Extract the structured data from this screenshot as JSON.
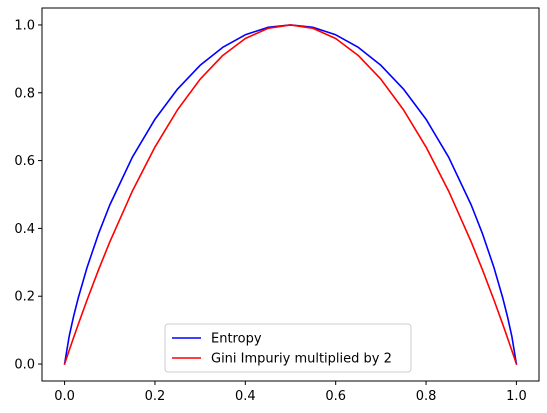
{
  "chart_data": {
    "type": "line",
    "title": "",
    "xlabel": "",
    "ylabel": "",
    "xlim": [
      -0.05,
      1.05
    ],
    "ylim": [
      -0.05,
      1.05
    ],
    "xticks": [
      0.0,
      0.2,
      0.4,
      0.6,
      0.8,
      1.0
    ],
    "yticks": [
      0.0,
      0.2,
      0.4,
      0.6,
      0.8,
      1.0
    ],
    "xtick_labels": [
      "0.0",
      "0.2",
      "0.4",
      "0.6",
      "0.8",
      "1.0"
    ],
    "ytick_labels": [
      "0.0",
      "0.2",
      "0.4",
      "0.6",
      "0.8",
      "1.0"
    ],
    "grid": false,
    "legend_position": "bottom-center",
    "series": [
      {
        "name": "Entropy",
        "color": "#0000ff",
        "x": [
          0.0,
          0.01,
          0.02,
          0.03,
          0.05,
          0.075,
          0.1,
          0.15,
          0.2,
          0.25,
          0.3,
          0.35,
          0.4,
          0.45,
          0.5,
          0.55,
          0.6,
          0.65,
          0.7,
          0.75,
          0.8,
          0.85,
          0.9,
          0.925,
          0.95,
          0.97,
          0.98,
          0.99,
          1.0
        ],
        "y": [
          0.0,
          0.081,
          0.141,
          0.194,
          0.286,
          0.384,
          0.469,
          0.61,
          0.722,
          0.811,
          0.881,
          0.934,
          0.971,
          0.993,
          1.0,
          0.993,
          0.971,
          0.934,
          0.881,
          0.811,
          0.722,
          0.61,
          0.469,
          0.384,
          0.286,
          0.194,
          0.141,
          0.081,
          0.0
        ]
      },
      {
        "name": "Gini Impuriy multiplied by 2",
        "color": "#ff0000",
        "x": [
          0.0,
          0.01,
          0.02,
          0.03,
          0.05,
          0.075,
          0.1,
          0.15,
          0.2,
          0.25,
          0.3,
          0.35,
          0.4,
          0.45,
          0.5,
          0.55,
          0.6,
          0.65,
          0.7,
          0.75,
          0.8,
          0.85,
          0.9,
          0.925,
          0.95,
          0.97,
          0.98,
          0.99,
          1.0
        ],
        "y": [
          0.0,
          0.0396,
          0.0784,
          0.1164,
          0.19,
          0.2775,
          0.36,
          0.51,
          0.64,
          0.75,
          0.84,
          0.91,
          0.96,
          0.99,
          1.0,
          0.99,
          0.96,
          0.91,
          0.84,
          0.75,
          0.64,
          0.51,
          0.36,
          0.2775,
          0.19,
          0.1164,
          0.0784,
          0.0396,
          0.0
        ]
      }
    ]
  }
}
